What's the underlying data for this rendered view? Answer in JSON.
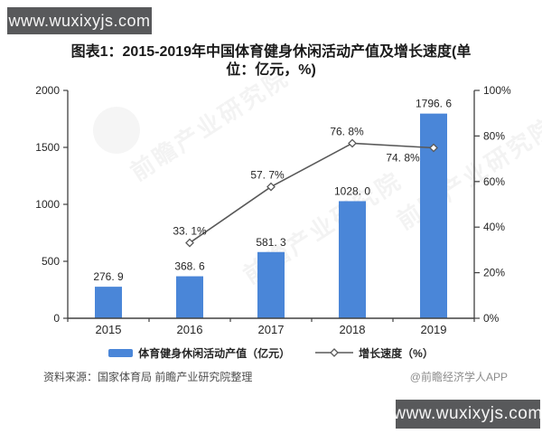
{
  "badges": {
    "top_left": "www.wuxixyjs.com",
    "bottom_right": "www.wuxixyjs.com"
  },
  "title": {
    "line1": "图表1：2015-2019年中国体育健身休闲活动产值及增长速度(单",
    "line2": "位：亿元，%)"
  },
  "chart_data": {
    "type": "bar",
    "categories": [
      "2015",
      "2016",
      "2017",
      "2018",
      "2019"
    ],
    "series": [
      {
        "name": "体育健身休闲活动产值（亿元）",
        "type": "bar",
        "axis": "left",
        "values": [
          276.9,
          368.6,
          581.3,
          1028.0,
          1796.6
        ],
        "labels": [
          "276. 9",
          "368. 6",
          "581. 3",
          "1028. 0",
          "1796. 6"
        ],
        "color": "#4a86d8"
      },
      {
        "name": "增长速度（%）",
        "type": "line",
        "axis": "right",
        "values": [
          null,
          33.1,
          57.7,
          76.8,
          74.8
        ],
        "labels": [
          null,
          "33. 1%",
          "57. 7%",
          "76. 8%",
          "74. 8%"
        ],
        "color": "#595959",
        "marker": "diamond-open"
      }
    ],
    "left_axis": {
      "min": 0,
      "max": 2000,
      "ticks": [
        "0",
        "500",
        "1000",
        "1500",
        "2000"
      ]
    },
    "right_axis": {
      "min": 0,
      "max": 100,
      "ticks": [
        "0%",
        "20%",
        "40%",
        "60%",
        "80%",
        "100%"
      ]
    },
    "grid": false,
    "legend_position": "bottom"
  },
  "footer": {
    "source": "资料来源：国家体育局 前瞻产业研究院整理",
    "credit": "@前瞻经济学人APP"
  },
  "watermark": {
    "text": "前瞻产业研究院"
  },
  "colors": {
    "bar": "#4a86d8",
    "line": "#595959",
    "axis": "#404040",
    "label": "#262626",
    "badge_bg": "#58595b",
    "title": "#1a1a1a"
  }
}
